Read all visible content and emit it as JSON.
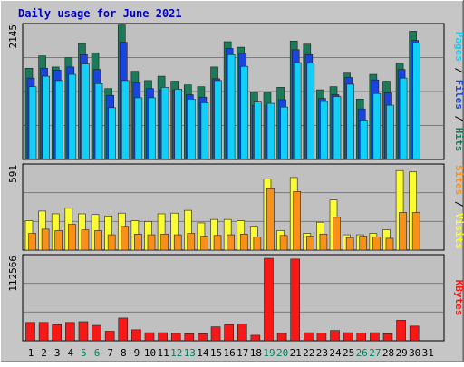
{
  "chart_data": {
    "type": "bar",
    "title": "Daily usage for June 2021",
    "days": [
      "1",
      "2",
      "3",
      "4",
      "5",
      "6",
      "7",
      "8",
      "9",
      "10",
      "11",
      "12",
      "13",
      "14",
      "15",
      "16",
      "17",
      "18",
      "19",
      "20",
      "21",
      "22",
      "23",
      "24",
      "25",
      "26",
      "27",
      "28",
      "29",
      "30",
      "31"
    ],
    "weekend_days": [
      "5",
      "6",
      "12",
      "13",
      "19",
      "20",
      "26",
      "27"
    ],
    "panels": [
      {
        "id": "top",
        "ymax": 2145,
        "ymax_label": "2145",
        "legend": [
          "Pages",
          "Files",
          "Hits"
        ],
        "legend_separator": " / ",
        "series": [
          {
            "name": "Hits",
            "values": [
              1480,
              1680,
              1500,
              1650,
              1880,
              1730,
              1150,
              2180,
              1430,
              1280,
              1350,
              1270,
              1210,
              1180,
              1500,
              1910,
              1820,
              1090,
              1090,
              1170,
              1920,
              1870,
              1130,
              1180,
              1400,
              980,
              1380,
              1270,
              1560,
              2080,
              null
            ]
          },
          {
            "name": "Files",
            "values": [
              1320,
              1480,
              1450,
              1500,
              1700,
              1460,
              1040,
              1900,
              1240,
              1150,
              1130,
              1130,
              1050,
              1010,
              1310,
              1800,
              1720,
              880,
              880,
              970,
              1780,
              1700,
              990,
              1050,
              1330,
              820,
              1290,
              1080,
              1460,
              1930,
              null
            ]
          },
          {
            "name": "Pages",
            "values": [
              1180,
              1350,
              1280,
              1380,
              1550,
              1230,
              840,
              1280,
              1000,
              1000,
              1170,
              1140,
              980,
              920,
              1280,
              1700,
              1510,
              930,
              910,
              850,
              1570,
              1560,
              940,
              1020,
              1220,
              640,
              1070,
              880,
              1320,
              1890,
              null
            ]
          }
        ]
      },
      {
        "id": "mid",
        "ymax": 591,
        "ymax_label": "591",
        "legend": [
          "Sites",
          "Visits"
        ],
        "legend_separator": " / ",
        "series": [
          {
            "name": "Visits",
            "values": [
              210,
              280,
              260,
              300,
              260,
              255,
              245,
              265,
              210,
              205,
              260,
              265,
              285,
              195,
              220,
              220,
              210,
              170,
              510,
              140,
              520,
              120,
              200,
              360,
              110,
              110,
              120,
              145,
              570,
              560,
              null
            ]
          },
          {
            "name": "Sites",
            "values": [
              120,
              150,
              140,
              185,
              145,
              140,
              110,
              170,
              115,
              110,
              115,
              110,
              120,
              100,
              105,
              110,
              115,
              95,
              440,
              105,
              420,
              100,
              115,
              235,
              90,
              100,
              95,
              85,
              270,
              270,
              null
            ]
          }
        ]
      },
      {
        "id": "bot",
        "ymax": 112566,
        "ymax_label": "112566",
        "legend": [
          "KBytes"
        ],
        "legend_separator": "",
        "series": [
          {
            "name": "KBytes",
            "values": [
              25000,
              25000,
              22000,
              25000,
              26000,
              21000,
              13000,
              31000,
              15000,
              11000,
              11000,
              10000,
              9500,
              9500,
              19000,
              22000,
              23000,
              7500,
              112500,
              10000,
              111500,
              11000,
              10500,
              14000,
              11000,
              10500,
              11000,
              9500,
              28000,
              20000,
              null
            ]
          }
        ]
      }
    ],
    "colors": {
      "Hits": "#1b7a58",
      "Files": "#1a44e0",
      "Pages": "#10d0f8",
      "Visits": "#fcfc32",
      "Sites": "#f8901c",
      "KBytes": "#f81818",
      "weekday_label": "#000000",
      "weekend_label": "#008060",
      "title": "#0000c0",
      "plot_bg": "#c0c0c0",
      "frame_bg": "#c6c6c6"
    }
  }
}
